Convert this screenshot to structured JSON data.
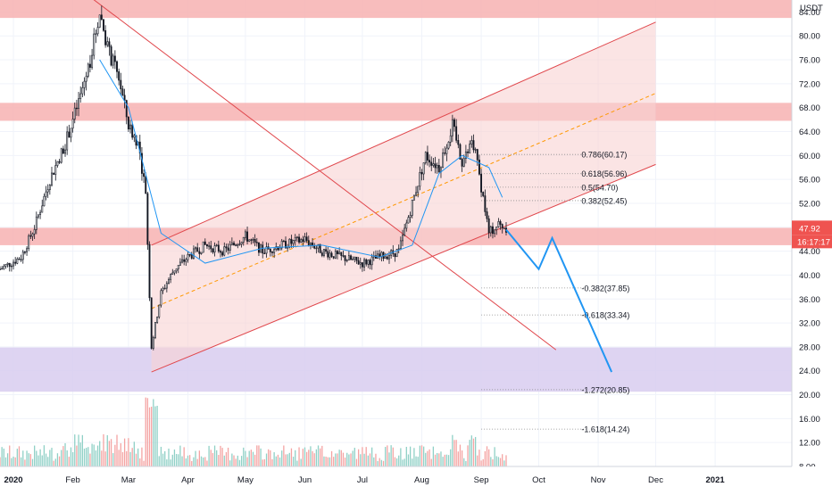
{
  "chart_data": {
    "type": "candlestick",
    "currency": "USDT",
    "y_axis": {
      "min": 8,
      "max": 86,
      "ticks": [
        "84.00",
        "80.00",
        "76.00",
        "72.00",
        "68.00",
        "64.00",
        "60.00",
        "56.00",
        "52.00",
        "48.00",
        "44.00",
        "40.00",
        "36.00",
        "32.00",
        "28.00",
        "24.00",
        "20.00",
        "16.00",
        "12.00",
        "8.00"
      ]
    },
    "x_axis": {
      "start": "2019-12-25",
      "end": "2021-02-10",
      "ticks": [
        {
          "label": "2020",
          "date": "2020-01-01",
          "bold": true
        },
        {
          "label": "Feb",
          "date": "2020-02-01"
        },
        {
          "label": "Mar",
          "date": "2020-03-01"
        },
        {
          "label": "Apr",
          "date": "2020-04-01"
        },
        {
          "label": "May",
          "date": "2020-05-01"
        },
        {
          "label": "Jun",
          "date": "2020-06-01"
        },
        {
          "label": "Jul",
          "date": "2020-07-01"
        },
        {
          "label": "Aug",
          "date": "2020-08-01"
        },
        {
          "label": "Sep",
          "date": "2020-09-01"
        },
        {
          "label": "Oct",
          "date": "2020-10-01"
        },
        {
          "label": "Nov",
          "date": "2020-11-01"
        },
        {
          "label": "Dec",
          "date": "2020-12-01"
        },
        {
          "label": "2021",
          "date": "2021-01-01",
          "bold": true
        }
      ]
    },
    "price_series": [
      {
        "date": "2019-12-25",
        "close": 41.0
      },
      {
        "date": "2020-01-05",
        "close": 43.0
      },
      {
        "date": "2020-01-12",
        "close": 48.0
      },
      {
        "date": "2020-01-20",
        "close": 56.0
      },
      {
        "date": "2020-01-28",
        "close": 62.0
      },
      {
        "date": "2020-02-05",
        "close": 70.0
      },
      {
        "date": "2020-02-10",
        "close": 76.0
      },
      {
        "date": "2020-02-15",
        "close": 84.0
      },
      {
        "date": "2020-02-20",
        "close": 77.0
      },
      {
        "date": "2020-02-25",
        "close": 73.0
      },
      {
        "date": "2020-03-01",
        "close": 65.0
      },
      {
        "date": "2020-03-06",
        "close": 62.0
      },
      {
        "date": "2020-03-10",
        "close": 54.0
      },
      {
        "date": "2020-03-13",
        "close": 28.0
      },
      {
        "date": "2020-03-18",
        "close": 37.0
      },
      {
        "date": "2020-03-25",
        "close": 41.0
      },
      {
        "date": "2020-04-01",
        "close": 43.0
      },
      {
        "date": "2020-04-10",
        "close": 45.0
      },
      {
        "date": "2020-04-20",
        "close": 44.0
      },
      {
        "date": "2020-05-01",
        "close": 46.5
      },
      {
        "date": "2020-05-10",
        "close": 44.0
      },
      {
        "date": "2020-05-20",
        "close": 45.0
      },
      {
        "date": "2020-06-01",
        "close": 46.0
      },
      {
        "date": "2020-06-10",
        "close": 44.0
      },
      {
        "date": "2020-06-20",
        "close": 43.0
      },
      {
        "date": "2020-07-01",
        "close": 42.0
      },
      {
        "date": "2020-07-10",
        "close": 43.0
      },
      {
        "date": "2020-07-20",
        "close": 44.0
      },
      {
        "date": "2020-07-27",
        "close": 52.0
      },
      {
        "date": "2020-08-03",
        "close": 60.0
      },
      {
        "date": "2020-08-10",
        "close": 58.0
      },
      {
        "date": "2020-08-17",
        "close": 65.0
      },
      {
        "date": "2020-08-22",
        "close": 59.0
      },
      {
        "date": "2020-08-28",
        "close": 62.0
      },
      {
        "date": "2020-09-02",
        "close": 53.0
      },
      {
        "date": "2020-09-05",
        "close": 47.0
      },
      {
        "date": "2020-09-10",
        "close": 48.5
      },
      {
        "date": "2020-09-14",
        "close": 47.92
      }
    ],
    "moving_average": [
      {
        "date": "2020-02-15",
        "value": 76.0
      },
      {
        "date": "2020-03-01",
        "value": 68.0
      },
      {
        "date": "2020-03-18",
        "value": 47.0
      },
      {
        "date": "2020-04-10",
        "value": 42.0
      },
      {
        "date": "2020-05-10",
        "value": 44.5
      },
      {
        "date": "2020-06-10",
        "value": 45.0
      },
      {
        "date": "2020-07-10",
        "value": 43.0
      },
      {
        "date": "2020-07-27",
        "value": 45.0
      },
      {
        "date": "2020-08-10",
        "value": 57.0
      },
      {
        "date": "2020-08-22",
        "value": 60.0
      },
      {
        "date": "2020-09-05",
        "value": 58.0
      },
      {
        "date": "2020-09-12",
        "value": 53.0
      }
    ],
    "zones": [
      {
        "name": "resistance-top",
        "y1": 83.0,
        "y2": 86.0,
        "color": "#f7b1b1"
      },
      {
        "name": "resistance-mid",
        "y1": 65.8,
        "y2": 68.8,
        "color": "#f7b1b1"
      },
      {
        "name": "support",
        "y1": 45.0,
        "y2": 47.9,
        "color": "#f7b1b1"
      },
      {
        "name": "demand",
        "y1": 20.5,
        "y2": 27.9,
        "color": "#d8cdf0"
      }
    ],
    "channel": {
      "lower_start": {
        "date": "2020-03-13",
        "value": 23.8
      },
      "lower_end": {
        "date": "2020-12-01",
        "value": 58.5
      },
      "upper_start": {
        "date": "2020-03-13",
        "value": 45.0
      },
      "upper_end": {
        "date": "2020-12-01",
        "value": 82.3
      }
    },
    "downtrend_line": {
      "start": {
        "date": "2020-02-08",
        "value": 87.0
      },
      "end": {
        "date": "2020-10-10",
        "value": 27.5
      }
    },
    "fib_levels": [
      {
        "label": "0.786(60.17)",
        "value": 60.17
      },
      {
        "label": "0.618(56.96)",
        "value": 56.96
      },
      {
        "label": "0.5(54.70)",
        "value": 54.7
      },
      {
        "label": "0.382(52.45)",
        "value": 52.45
      },
      {
        "label": "-0.382(37.85)",
        "value": 37.85
      },
      {
        "label": "-0.618(33.34)",
        "value": 33.34
      },
      {
        "label": "-1.272(20.85)",
        "value": 20.85
      },
      {
        "label": "-1.618(14.24)",
        "value": 14.24
      }
    ],
    "projection_path": [
      {
        "date": "2020-09-14",
        "value": 47.6
      },
      {
        "date": "2020-10-01",
        "value": 41.0
      },
      {
        "date": "2020-10-08",
        "value": 46.2
      },
      {
        "date": "2020-11-08",
        "value": 23.8
      }
    ],
    "price_label": {
      "value": 47.92,
      "text": "47.92",
      "countdown": "16:17:17",
      "color": "#ef5350"
    }
  }
}
